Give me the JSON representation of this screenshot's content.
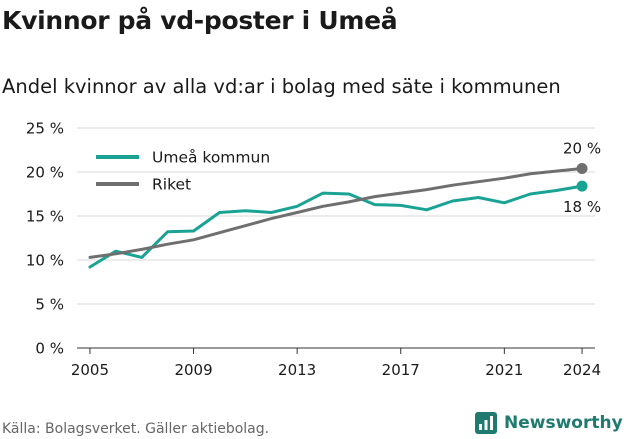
{
  "title": "Kvinnor på vd-poster i Umeå",
  "subtitle": "Andel kvinnor av alla vd:ar i bolag med säte i kommunen",
  "source": "Källa: Bolagsverket. Gäller aktiebolag.",
  "brand": "Newsworthy",
  "colors": {
    "umea": "#1aa394",
    "riket": "#6f6f6f",
    "grid": "#d9d9d9",
    "axis": "#333333",
    "brand": "#1f7a70"
  },
  "chart_data": {
    "type": "line",
    "title": "Kvinnor på vd-poster i Umeå",
    "subtitle": "Andel kvinnor av alla vd:ar i bolag med säte i kommunen",
    "x": [
      2005,
      2006,
      2007,
      2008,
      2009,
      2010,
      2011,
      2012,
      2013,
      2014,
      2015,
      2016,
      2017,
      2018,
      2019,
      2020,
      2021,
      2022,
      2023,
      2024
    ],
    "xlim": [
      2004.5,
      2024.5
    ],
    "ylim": [
      0,
      25
    ],
    "x_ticks": [
      2005,
      2009,
      2013,
      2017,
      2021,
      2024
    ],
    "y_ticks": [
      0,
      5,
      10,
      15,
      20,
      25
    ],
    "y_tick_labels": [
      "0 %",
      "5 %",
      "10 %",
      "15 %",
      "20 %",
      "25 %"
    ],
    "grid": "horizontal",
    "legend_position": "top-left",
    "series": [
      {
        "name": "Umeå kommun",
        "color": "#1aa394",
        "end_label": "18 %",
        "values": [
          9.2,
          11.0,
          10.3,
          13.2,
          13.3,
          15.4,
          15.6,
          15.4,
          16.1,
          17.6,
          17.5,
          16.3,
          16.2,
          15.7,
          16.7,
          17.1,
          16.5,
          17.5,
          17.9,
          18.4
        ]
      },
      {
        "name": "Riket",
        "color": "#6f6f6f",
        "end_label": "20 %",
        "values": [
          10.3,
          10.7,
          11.2,
          11.8,
          12.3,
          13.1,
          13.9,
          14.7,
          15.4,
          16.1,
          16.6,
          17.2,
          17.6,
          18.0,
          18.5,
          18.9,
          19.3,
          19.8,
          20.1,
          20.4
        ]
      }
    ]
  }
}
